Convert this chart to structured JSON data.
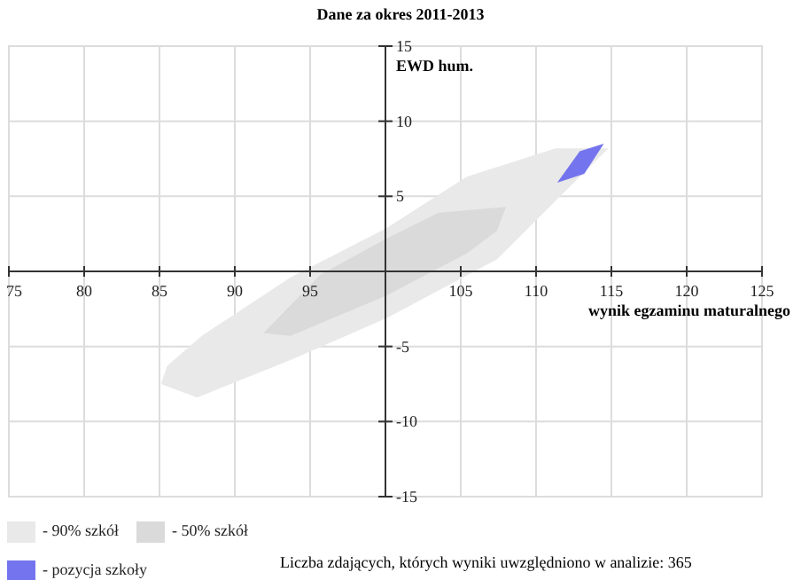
{
  "chart_data": {
    "type": "area",
    "title": "Dane za okres 2011-2013",
    "xlabel": "wynik egzaminu maturalnego",
    "ylabel": "EWD hum.",
    "xlim": [
      75,
      125
    ],
    "xticks": [
      75,
      80,
      85,
      90,
      95,
      {
        "value": 100,
        "label": null
      },
      105,
      110,
      115,
      120,
      125
    ],
    "ylim": [
      -15,
      15
    ],
    "yticks": [
      -15,
      -10,
      -5,
      {
        "value": 0,
        "label": null
      },
      5,
      10,
      15
    ],
    "grid": true,
    "legend": "bottom",
    "series": [
      {
        "name": "- 90% szkół",
        "color": "#e9e9e9",
        "x": [
          85.1,
          87.5,
          93.7,
          100.1,
          107.4,
          114.8,
          111.3,
          105.4,
          100.1,
          93.7,
          87.8,
          85.5
        ],
        "values": [
          -7.5,
          -8.4,
          -5.9,
          -3.1,
          0.8,
          8.2,
          8.2,
          6.3,
          2.9,
          -0.4,
          -4.3,
          -6.3
        ]
      },
      {
        "name": "- 50% szkół",
        "color": "#dadada",
        "x": [
          91.9,
          93.7,
          100.1,
          105.4,
          107.4,
          108.0,
          103.5,
          100.1,
          95.7
        ],
        "values": [
          -4.1,
          -4.3,
          -1.6,
          1.2,
          2.7,
          4.3,
          3.9,
          2.2,
          -0.2
        ]
      },
      {
        "name": "- pozycja szkoły",
        "color": "#7474ee",
        "x": [
          111.4,
          113.2,
          114.5,
          112.9
        ],
        "values": [
          5.9,
          6.5,
          8.5,
          8.0
        ]
      }
    ],
    "annotations": [
      "Liczba zdających, których wyniki uwzględniono w analizie: 365"
    ]
  }
}
